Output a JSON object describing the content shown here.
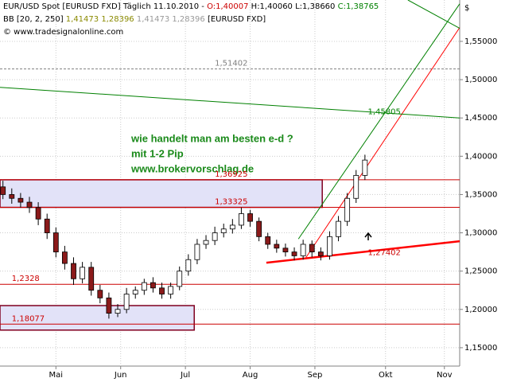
{
  "chart_data": {
    "type": "candlestick",
    "header": {
      "symbol": "EUR/USD Spot [EURUSD FXD]",
      "period": "Täglich 11.10.2010 -",
      "open": "O:1,40007",
      "high": "H:1,40060",
      "low": "L:1,38660",
      "close": "C:1,38765",
      "indicator": "BB [20, 2, 250]",
      "bb_values_a": "1,41473 1,28396",
      "bb_values_b": "1,41473 1,28396",
      "bb_symbol": "[EURUSD FXD]",
      "copyright": "© www.tradesignalonline.com"
    },
    "currency": "$",
    "annotation": [
      "wie handelt man am besten e-d ?",
      "mit 1-2 Pip",
      "www.brokervorschlag.de"
    ],
    "x": [
      1,
      4,
      7,
      10,
      13,
      16,
      19,
      22,
      25,
      28,
      31,
      34,
      37,
      40,
      43,
      46,
      49,
      52,
      55,
      58,
      61,
      64,
      67,
      70,
      73,
      76,
      79,
      82,
      85,
      88,
      91,
      94,
      97,
      100,
      103,
      106,
      109,
      112,
      115,
      118,
      121,
      124
    ],
    "open": [
      1.36,
      1.35,
      1.345,
      1.34,
      1.333,
      1.318,
      1.3,
      1.275,
      1.26,
      1.24,
      1.255,
      1.225,
      1.215,
      1.195,
      1.2,
      1.22,
      1.225,
      1.235,
      1.228,
      1.22,
      1.23,
      1.25,
      1.265,
      1.285,
      1.29,
      1.3,
      1.305,
      1.31,
      1.325,
      1.315,
      1.295,
      1.285,
      1.28,
      1.275,
      1.27,
      1.285,
      1.275,
      1.27,
      1.295,
      1.315,
      1.345,
      1.375
    ],
    "high": [
      1.368,
      1.358,
      1.352,
      1.347,
      1.34,
      1.325,
      1.307,
      1.283,
      1.268,
      1.262,
      1.262,
      1.232,
      1.222,
      1.207,
      1.228,
      1.23,
      1.24,
      1.242,
      1.235,
      1.235,
      1.256,
      1.272,
      1.292,
      1.297,
      1.308,
      1.312,
      1.318,
      1.333,
      1.33,
      1.32,
      1.3,
      1.291,
      1.286,
      1.281,
      1.291,
      1.29,
      1.281,
      1.302,
      1.322,
      1.352,
      1.382,
      1.402
    ],
    "low": [
      1.344,
      1.338,
      1.333,
      1.326,
      1.31,
      1.292,
      1.268,
      1.252,
      1.232,
      1.234,
      1.218,
      1.208,
      1.188,
      1.19,
      1.195,
      1.214,
      1.219,
      1.222,
      1.214,
      1.214,
      1.225,
      1.244,
      1.259,
      1.279,
      1.284,
      1.294,
      1.299,
      1.305,
      1.308,
      1.289,
      1.279,
      1.274,
      1.269,
      1.264,
      1.265,
      1.268,
      1.264,
      1.265,
      1.289,
      1.309,
      1.339,
      1.369
    ],
    "close": [
      1.35,
      1.345,
      1.34,
      1.333,
      1.318,
      1.3,
      1.275,
      1.26,
      1.24,
      1.255,
      1.225,
      1.215,
      1.195,
      1.2,
      1.22,
      1.225,
      1.235,
      1.228,
      1.22,
      1.23,
      1.25,
      1.265,
      1.285,
      1.29,
      1.3,
      1.305,
      1.31,
      1.325,
      1.315,
      1.295,
      1.285,
      1.28,
      1.275,
      1.27,
      1.285,
      1.275,
      1.27,
      1.295,
      1.315,
      1.345,
      1.375,
      1.395
    ],
    "xlim": [
      0,
      156.2
    ],
    "xticks": [
      {
        "value": 19,
        "label": "Mai"
      },
      {
        "value": 41,
        "label": "Jun"
      },
      {
        "value": 63,
        "label": "Jul"
      },
      {
        "value": 85,
        "label": "Aug"
      },
      {
        "value": 107,
        "label": "Sep"
      },
      {
        "value": 131,
        "label": "Okt"
      },
      {
        "value": 151,
        "label": "Nov"
      }
    ],
    "ylim": [
      1.126,
      1.604
    ],
    "yticks": [
      {
        "value": 1.15,
        "label": "1,15000"
      },
      {
        "value": 1.2,
        "label": "1,20000"
      },
      {
        "value": 1.25,
        "label": "1,25000"
      },
      {
        "value": 1.3,
        "label": "1,30000"
      },
      {
        "value": 1.35,
        "label": "1,35000"
      },
      {
        "value": 1.4,
        "label": "1,40000"
      },
      {
        "value": 1.45,
        "label": "1,45000"
      },
      {
        "value": 1.5,
        "label": "1,50000"
      },
      {
        "value": 1.55,
        "label": "1,55000"
      }
    ],
    "grid": true,
    "up_color": "#ffffff",
    "down_color": "#8b1a1a",
    "levels": [
      {
        "value": 1.51402,
        "label": "1,51402",
        "color": "#808080",
        "label_x": 73
      },
      {
        "value": 1.36925,
        "label": "1,36925",
        "color": "#cc0000",
        "label_x": 73
      },
      {
        "value": 1.33325,
        "label": "1,33325",
        "color": "#cc0000",
        "label_x": 73
      },
      {
        "value": 1.2328,
        "label": "1,2328",
        "color": "#cc0000",
        "label_x": 4
      },
      {
        "value": 1.18077,
        "label": "1,18077",
        "color": "#cc0000",
        "label_x": 4
      }
    ],
    "zones": [
      {
        "top": 1.36925,
        "bottom": 1.33325,
        "x_end": 109.5
      },
      {
        "top": 1.205,
        "bottom": 1.173,
        "x_end": 66
      }
    ],
    "trendlines": [
      {
        "x": [
          101.4,
          156.2
        ],
        "y": [
          1.292,
          1.599
        ],
        "color": "#008000"
      },
      {
        "x": [
          104,
          156.2
        ],
        "y": [
          1.268,
          1.568
        ],
        "color": "#ff0000"
      },
      {
        "x": [
          0,
          156.2
        ],
        "y": [
          1.49,
          1.45
        ],
        "color": "#008000"
      },
      {
        "x": [
          138.6,
          156.2
        ],
        "y": [
          1.604,
          1.567
        ],
        "color": "#008000"
      },
      {
        "x": [
          90.5,
          156.2
        ],
        "y": [
          1.261,
          1.289
        ],
        "color": "#ff0000"
      }
    ],
    "trend_labels": [
      {
        "value": 1.45805,
        "label": "1,45805",
        "color": "#008000",
        "x": 125
      },
      {
        "value": 1.27402,
        "label": "1,27402",
        "color": "#cc0000",
        "x": 125
      }
    ]
  }
}
